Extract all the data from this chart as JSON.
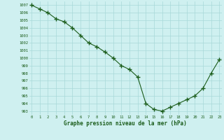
{
  "x": [
    0,
    1,
    2,
    3,
    4,
    5,
    6,
    7,
    8,
    9,
    10,
    11,
    12,
    13,
    14,
    15,
    16,
    17,
    18,
    19,
    20,
    21,
    22,
    23
  ],
  "y": [
    1007,
    1006.5,
    1006,
    1005.2,
    1004.8,
    1004,
    1003,
    1002,
    1001.5,
    1000.8,
    1000,
    999,
    998.5,
    997.5,
    994,
    993.2,
    993,
    993.5,
    994,
    994.5,
    995,
    996,
    998,
    999.8
  ],
  "line_color": "#1a5c1a",
  "marker": "+",
  "marker_color": "#1a5c1a",
  "bg_color": "#cff0f0",
  "grid_color": "#a8d8d8",
  "xlabel": "Graphe pression niveau de la mer (hPa)",
  "xlabel_color": "#1a5c1a",
  "tick_color": "#1a5c1a",
  "ytick_min": 993,
  "ytick_max": 1007,
  "xtick_min": 0,
  "xtick_max": 23,
  "ylim_min": 992.5,
  "ylim_max": 1007.5,
  "xlim_min": -0.3,
  "xlim_max": 23.3,
  "linewidth": 0.8,
  "markersize": 4
}
